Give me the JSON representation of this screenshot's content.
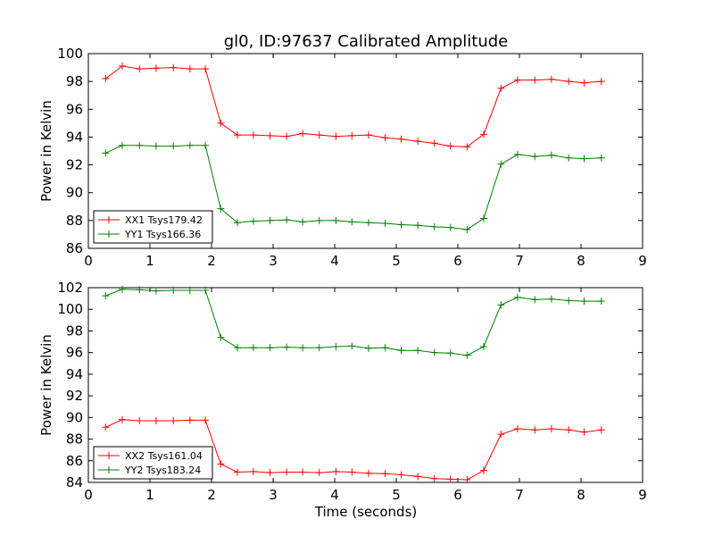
{
  "title": "gl0, ID:97637 Calibrated Amplitude",
  "xlabel": "Time (seconds)",
  "chart_data": [
    {
      "type": "line",
      "title": "gl0, ID:97637 Calibrated Amplitude",
      "xlabel": "",
      "ylabel": "Power in Kelvin",
      "xlim": [
        0,
        9
      ],
      "ylim": [
        86,
        100
      ],
      "xticks": [
        0,
        1,
        2,
        3,
        4,
        5,
        6,
        7,
        8,
        9
      ],
      "yticks": [
        86,
        88,
        90,
        92,
        94,
        96,
        98,
        100
      ],
      "grid": false,
      "legend_position": "lower-left",
      "x": [
        0.27,
        0.55,
        0.82,
        1.09,
        1.37,
        1.64,
        1.91,
        2.18,
        2.46,
        2.73,
        3.0,
        3.28,
        3.55,
        3.82,
        4.09,
        4.37,
        4.64,
        4.91,
        5.19,
        5.46,
        5.73,
        6.0,
        6.28,
        6.55,
        6.82,
        7.09,
        7.37,
        7.64,
        7.91,
        8.19,
        8.46
      ],
      "series": [
        {
          "name": "XX1 Tsys179.42",
          "color": "#ff0000",
          "x": [
            0.28,
            0.55,
            0.83,
            1.1,
            1.38,
            1.65,
            1.9,
            2.15,
            2.42,
            2.68,
            2.95,
            3.22,
            3.48,
            3.75,
            4.02,
            4.28,
            4.55,
            4.82,
            5.08,
            5.35,
            5.62,
            5.88,
            6.15,
            6.42,
            6.7,
            6.97,
            7.25,
            7.52,
            7.8,
            8.05,
            8.33
          ],
          "values": [
            98.2,
            99.1,
            98.9,
            98.95,
            99.0,
            98.9,
            98.9,
            95.0,
            94.15,
            94.15,
            94.1,
            94.05,
            94.25,
            94.15,
            94.05,
            94.1,
            94.15,
            93.95,
            93.85,
            93.7,
            93.55,
            93.35,
            93.3,
            94.2,
            97.5,
            98.1,
            98.1,
            98.15,
            98.0,
            97.9,
            98.0
          ]
        },
        {
          "name": "YY1 Tsys166.36",
          "color": "#008000",
          "x": [
            0.28,
            0.55,
            0.83,
            1.1,
            1.38,
            1.65,
            1.9,
            2.15,
            2.42,
            2.68,
            2.95,
            3.22,
            3.48,
            3.75,
            4.02,
            4.28,
            4.55,
            4.82,
            5.08,
            5.35,
            5.62,
            5.88,
            6.15,
            6.42,
            6.7,
            6.97,
            7.25,
            7.52,
            7.8,
            8.05,
            8.33
          ],
          "values": [
            92.85,
            93.4,
            93.4,
            93.35,
            93.35,
            93.4,
            93.4,
            88.85,
            87.85,
            87.95,
            88.0,
            88.05,
            87.9,
            88.0,
            88.0,
            87.9,
            87.85,
            87.8,
            87.7,
            87.65,
            87.55,
            87.5,
            87.35,
            88.15,
            92.05,
            92.75,
            92.6,
            92.7,
            92.5,
            92.45,
            92.5
          ]
        }
      ]
    },
    {
      "type": "line",
      "title": "",
      "xlabel": "Time (seconds)",
      "ylabel": "Power in Kelvin",
      "xlim": [
        0,
        9
      ],
      "ylim": [
        84,
        102
      ],
      "xticks": [
        0,
        1,
        2,
        3,
        4,
        5,
        6,
        7,
        8,
        9
      ],
      "yticks": [
        84,
        86,
        88,
        90,
        92,
        94,
        96,
        98,
        100,
        102
      ],
      "grid": false,
      "legend_position": "lower-left",
      "series": [
        {
          "name": "XX2 Tsys161.04",
          "color": "#ff0000",
          "x": [
            0.28,
            0.55,
            0.83,
            1.1,
            1.38,
            1.65,
            1.9,
            2.15,
            2.42,
            2.68,
            2.95,
            3.22,
            3.48,
            3.75,
            4.02,
            4.28,
            4.55,
            4.82,
            5.08,
            5.35,
            5.62,
            5.88,
            6.15,
            6.42,
            6.7,
            6.97,
            7.25,
            7.52,
            7.8,
            8.05,
            8.33
          ],
          "values": [
            89.1,
            89.8,
            89.7,
            89.7,
            89.7,
            89.75,
            89.75,
            85.7,
            84.95,
            85.0,
            84.9,
            84.95,
            84.95,
            84.9,
            85.0,
            84.95,
            84.85,
            84.8,
            84.7,
            84.55,
            84.35,
            84.3,
            84.25,
            85.1,
            88.45,
            88.95,
            88.85,
            88.95,
            88.85,
            88.65,
            88.85
          ]
        },
        {
          "name": "YY2 Tsys183.24",
          "color": "#008000",
          "x": [
            0.28,
            0.55,
            0.83,
            1.1,
            1.38,
            1.65,
            1.9,
            2.15,
            2.42,
            2.68,
            2.95,
            3.22,
            3.48,
            3.75,
            4.02,
            4.28,
            4.55,
            4.82,
            5.08,
            5.35,
            5.62,
            5.88,
            6.15,
            6.42,
            6.7,
            6.97,
            7.25,
            7.52,
            7.8,
            8.05,
            8.33
          ],
          "values": [
            101.25,
            101.85,
            101.8,
            101.7,
            101.75,
            101.75,
            101.75,
            97.4,
            96.45,
            96.45,
            96.45,
            96.5,
            96.45,
            96.45,
            96.55,
            96.6,
            96.4,
            96.45,
            96.2,
            96.2,
            96.0,
            95.95,
            95.75,
            96.55,
            100.4,
            101.1,
            100.9,
            100.95,
            100.8,
            100.75,
            100.75
          ]
        }
      ]
    }
  ]
}
